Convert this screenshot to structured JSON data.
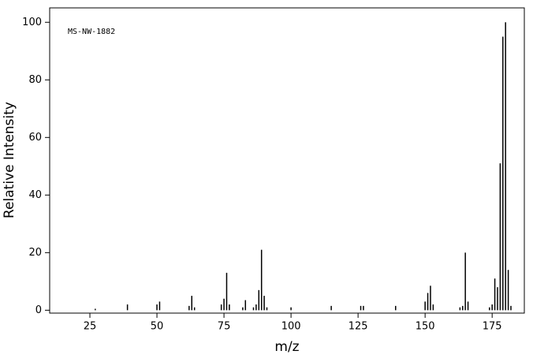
{
  "chart_data": {
    "type": "stem",
    "annotation": "MS-NW-1882",
    "xlabel": "m/z",
    "ylabel": "Relative Intensity",
    "x": [
      27,
      39,
      50,
      51,
      62,
      63,
      64,
      74,
      75,
      76,
      77,
      82,
      83,
      86,
      87,
      88,
      89,
      90,
      91,
      100,
      115,
      126,
      127,
      139,
      150,
      151,
      152,
      153,
      163,
      164,
      165,
      166,
      174,
      175,
      176,
      177,
      178,
      179,
      180,
      181,
      182
    ],
    "values": [
      0.5,
      2,
      2,
      3,
      1.5,
      5,
      1,
      2,
      4,
      13,
      2,
      1,
      3.5,
      1,
      2,
      7,
      21,
      5,
      1,
      1,
      1.5,
      1.5,
      1.5,
      1.5,
      3,
      6,
      8.5,
      2,
      1,
      1.5,
      20,
      3,
      1,
      2,
      11,
      8,
      51,
      95,
      100,
      14,
      1.5
    ],
    "color": "#000000",
    "xlim": [
      10,
      187
    ],
    "ylim": [
      -1,
      105
    ],
    "xticks": [
      25,
      50,
      75,
      100,
      125,
      150,
      175
    ],
    "yticks": [
      0,
      20,
      40,
      60,
      80,
      100
    ]
  }
}
